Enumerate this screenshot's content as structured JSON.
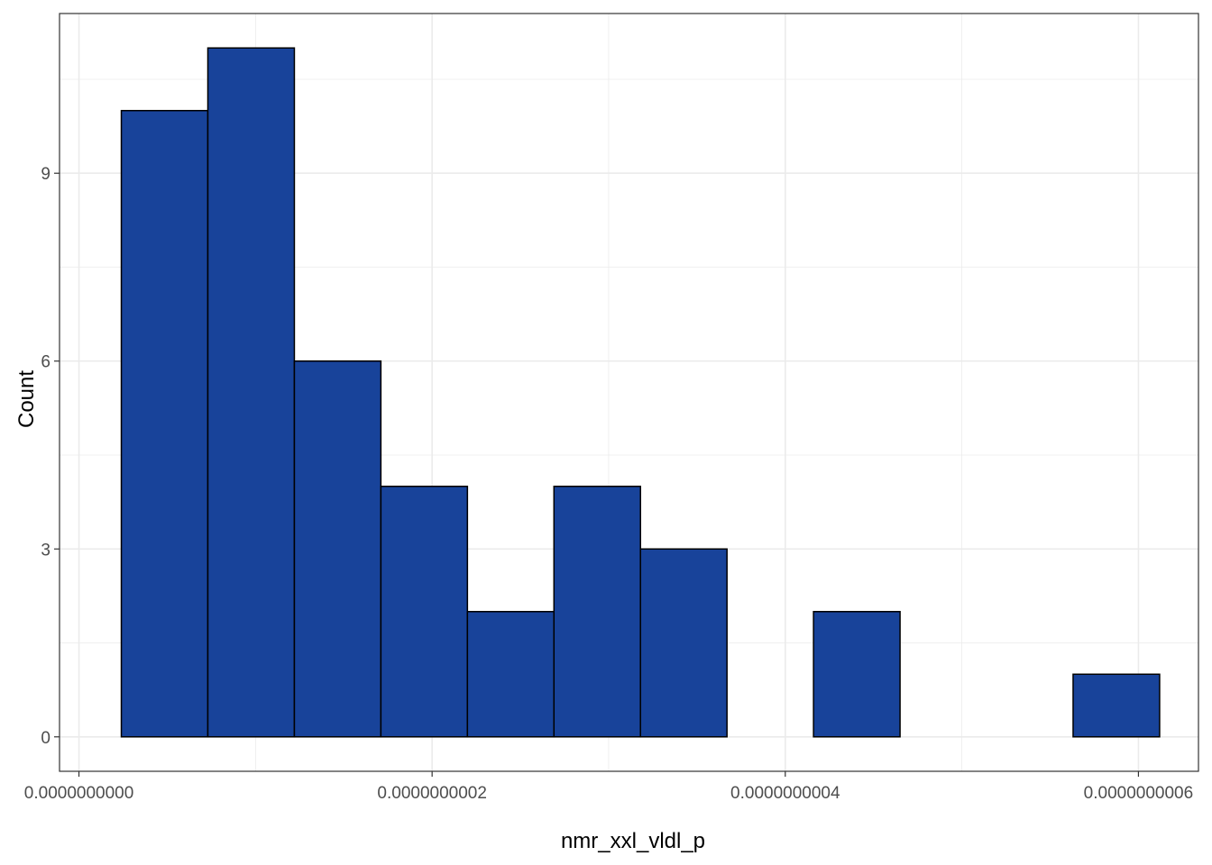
{
  "chart_data": {
    "type": "bar",
    "xlabel": "nmr_xxl_vldl_p",
    "ylabel": "Count",
    "x_tick_values": [
      0,
      2e-10,
      4e-10,
      6e-10
    ],
    "x_tick_labels": [
      "0.0000000000",
      "0.0000000002",
      "0.0000000004",
      "0.0000000006"
    ],
    "y_tick_values": [
      0,
      3,
      6,
      9
    ],
    "y_tick_labels": [
      "0",
      "3",
      "6",
      "9"
    ],
    "xlim": [
      -1.1e-11,
      6.34e-10
    ],
    "ylim": [
      -0.55,
      11.55
    ],
    "grid": true,
    "bins": [
      {
        "x0": 2.4e-11,
        "x1": 7.3e-11,
        "count": 10
      },
      {
        "x0": 7.3e-11,
        "x1": 1.22e-10,
        "count": 11
      },
      {
        "x0": 1.22e-10,
        "x1": 1.71e-10,
        "count": 6
      },
      {
        "x0": 1.71e-10,
        "x1": 2.2e-10,
        "count": 4
      },
      {
        "x0": 2.2e-10,
        "x1": 2.69e-10,
        "count": 2
      },
      {
        "x0": 2.69e-10,
        "x1": 3.18e-10,
        "count": 4
      },
      {
        "x0": 3.18e-10,
        "x1": 3.67e-10,
        "count": 3
      },
      {
        "x0": 3.67e-10,
        "x1": 4.16e-10,
        "count": 0
      },
      {
        "x0": 4.16e-10,
        "x1": 4.65e-10,
        "count": 2
      },
      {
        "x0": 4.65e-10,
        "x1": 5.14e-10,
        "count": 0
      },
      {
        "x0": 5.14e-10,
        "x1": 5.63e-10,
        "count": 0
      },
      {
        "x0": 5.63e-10,
        "x1": 6.12e-10,
        "count": 1
      }
    ],
    "fill_color": "#18439a",
    "stroke_color": "#000000",
    "grid_color": "#ebebeb"
  }
}
